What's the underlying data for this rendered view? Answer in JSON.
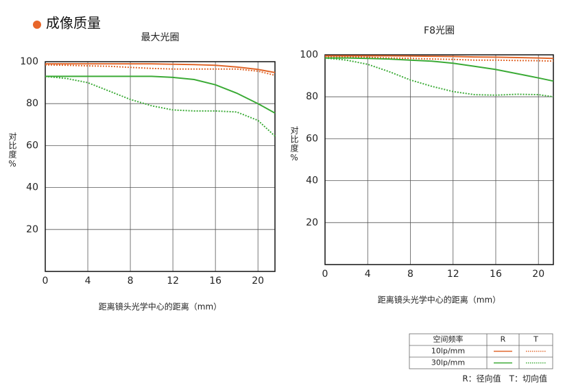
{
  "title": "成像质量",
  "legend": {
    "header": [
      "空间频率",
      "R",
      "T"
    ],
    "rows": [
      "10lp/mm",
      "30lp/mm"
    ],
    "note": "R：径向值　T：切向值"
  },
  "chart_data": [
    {
      "type": "line",
      "title": "最大光圈",
      "xlabel": "距离镜头光学中心的距离（mm）",
      "ylabel": "对比度%",
      "x": [
        0,
        2,
        4,
        6,
        8,
        10,
        12,
        14,
        16,
        18,
        20,
        21.6
      ],
      "xlim": [
        0,
        21.6
      ],
      "ylim": [
        0,
        100
      ],
      "xticks": [
        0,
        4,
        8,
        12,
        16,
        20
      ],
      "yticks": [
        20,
        40,
        60,
        80,
        100
      ],
      "grid": true,
      "series": [
        {
          "color": "#e0662a",
          "dashed": false,
          "values": [
            99,
            99,
            99,
            99,
            99,
            99,
            98.8,
            98.6,
            98.3,
            97.5,
            96.3,
            94.8
          ]
        },
        {
          "color": "#e0662a",
          "dashed": true,
          "values": [
            98.5,
            98.3,
            98,
            97.8,
            97.3,
            96.8,
            96.5,
            96.5,
            96.5,
            96.5,
            95.5,
            93.5
          ]
        },
        {
          "color": "#3aaa35",
          "dashed": false,
          "values": [
            93,
            93,
            93,
            93,
            93,
            93,
            92.5,
            91.5,
            89,
            85,
            80,
            75.5
          ]
        },
        {
          "color": "#3aaa35",
          "dashed": true,
          "values": [
            93,
            92,
            90,
            86,
            82,
            79,
            77,
            76.5,
            76.5,
            76,
            72,
            64.5
          ]
        }
      ]
    },
    {
      "type": "line",
      "title": "F8光圈",
      "xlabel": "距离镜头光学中心的距离（mm）",
      "ylabel": "对比度%",
      "x": [
        0,
        2,
        4,
        6,
        8,
        10,
        12,
        14,
        16,
        18,
        20,
        21.4
      ],
      "xlim": [
        0,
        21.4
      ],
      "ylim": [
        0,
        100
      ],
      "xticks": [
        0,
        4,
        8,
        12,
        16,
        20
      ],
      "yticks": [
        20,
        40,
        60,
        80,
        100
      ],
      "grid": true,
      "series": [
        {
          "color": "#e0662a",
          "dashed": false,
          "values": [
            99.5,
            99.5,
            99.5,
            99.5,
            99.4,
            99.3,
            99.2,
            99,
            98.9,
            98.7,
            98.5,
            98.3
          ]
        },
        {
          "color": "#e0662a",
          "dashed": true,
          "values": [
            99,
            99,
            98.8,
            98.5,
            98.3,
            98,
            97.8,
            97.5,
            97.5,
            97.3,
            97.2,
            97
          ]
        },
        {
          "color": "#3aaa35",
          "dashed": false,
          "values": [
            98.5,
            98.5,
            98.3,
            98,
            97.5,
            97,
            96,
            94.5,
            93,
            91,
            89,
            87.5
          ]
        },
        {
          "color": "#3aaa35",
          "dashed": true,
          "values": [
            98.5,
            97.5,
            95.5,
            92,
            88,
            85,
            82.5,
            81,
            80.8,
            81.2,
            81,
            80
          ]
        }
      ]
    }
  ]
}
